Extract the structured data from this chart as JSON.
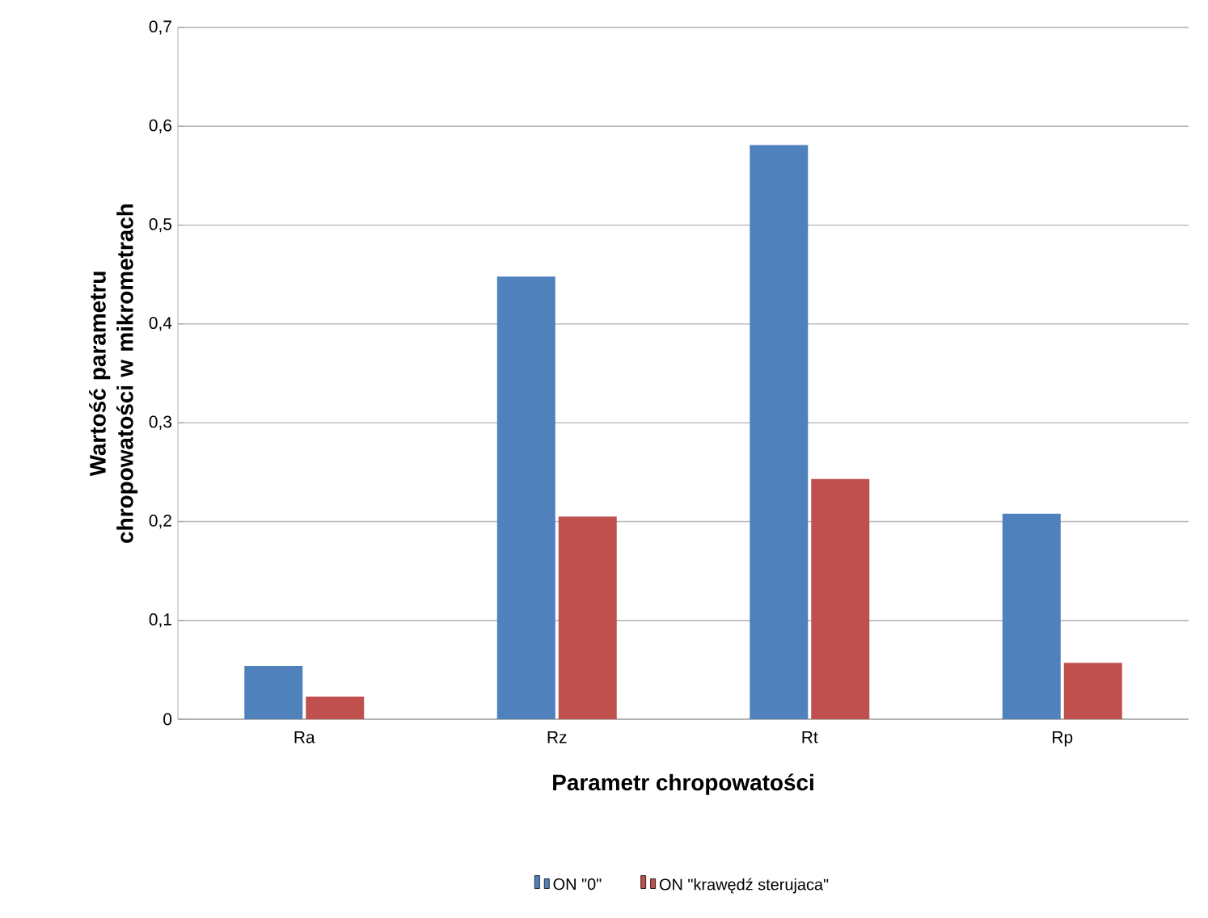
{
  "chart_data": {
    "type": "bar",
    "xlabel": "Parametr chropowatości",
    "ylabel": "Wartość parametru chropowatości w mikrometrach",
    "categories": [
      "Ra",
      "Rz",
      "Rt",
      "Rp"
    ],
    "series": [
      {
        "name": "ON \"0\"",
        "color": "#4f81bd",
        "values": [
          0.054,
          0.448,
          0.581,
          0.208
        ]
      },
      {
        "name": "ON \"krawędź sterujaca\"",
        "color": "#c0504d",
        "values": [
          0.023,
          0.205,
          0.243,
          0.057
        ]
      }
    ],
    "ylim": [
      0,
      0.7
    ],
    "yticks": [
      0,
      {
        "value": 0.1,
        "label": "0,1"
      },
      {
        "value": 0.2,
        "label": "0,2"
      },
      {
        "value": 0.3,
        "label": "0,3"
      },
      {
        "value": 0.4,
        "label": "0,4"
      },
      {
        "value": 0.5,
        "label": "0,5"
      },
      {
        "value": 0.6,
        "label": "0,6"
      },
      {
        "value": 0.7,
        "label": "0,7"
      }
    ],
    "grid": "y",
    "legend": "bottom"
  }
}
